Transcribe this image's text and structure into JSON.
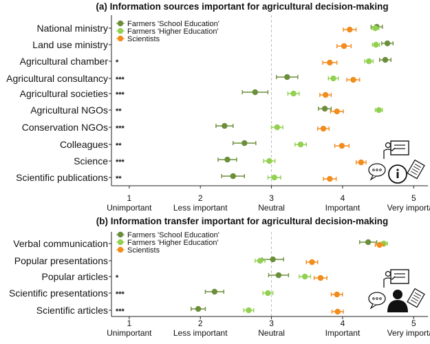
{
  "figure": {
    "panels": [
      {
        "title": "(a) Information sources important for agricultural decision-making",
        "legend": [
          "Farmers 'School Education'",
          "Farmers 'Higher Education'",
          "Scientists"
        ],
        "icon_names": [
          "person-at-board-icon",
          "speech-bubble-icon",
          "info-icon",
          "document-icon"
        ]
      },
      {
        "title": "(b) Information transfer important for agricultural decision-making",
        "legend": [
          "Farmers 'School Education'",
          "Farmers 'Higher Education'",
          "Scientists"
        ],
        "icon_names": [
          "person-at-board-icon",
          "speech-bubble-icon",
          "person-silhouette-icon",
          "document-icon"
        ]
      }
    ]
  },
  "colors": {
    "school": "#6b8e3a",
    "higher": "#92d050",
    "scientists": "#f28c1c",
    "neutral_line": "#bbbbbb",
    "text": "#111111"
  },
  "chart_data": [
    {
      "type": "scatter",
      "title": "(a) Information sources important for agricultural decision-making",
      "x_ticks": [
        1,
        2,
        3,
        4,
        5
      ],
      "x_tick_labels": [
        "Unimportant",
        "Less important",
        "Neutral",
        "Important",
        "Very important"
      ],
      "xlim": [
        0.75,
        5.2
      ],
      "reference_line": 3,
      "categories": [
        "National ministry",
        "Land use ministry",
        "Agricultural chamber",
        "Agricultural consultancy",
        "Agricultural societies",
        "Agricultural NGOs",
        "Conservation NGOs",
        "Colleagues",
        "Science",
        "Scientific publications"
      ],
      "significance": [
        "",
        "",
        "*",
        "***",
        "***",
        "**",
        "***",
        "**",
        "***",
        "**"
      ],
      "series": [
        {
          "name": "Farmers 'School Education'",
          "values": [
            4.48,
            4.63,
            4.6,
            3.22,
            2.77,
            3.75,
            2.34,
            2.62,
            2.38,
            2.46
          ],
          "errors": [
            0.08,
            0.08,
            0.08,
            0.15,
            0.18,
            0.09,
            0.12,
            0.16,
            0.13,
            0.16
          ]
        },
        {
          "name": "Farmers 'Higher Education'",
          "values": [
            4.46,
            4.47,
            4.37,
            3.87,
            3.31,
            4.51,
            3.08,
            3.41,
            2.97,
            3.04
          ],
          "errors": [
            0.05,
            0.05,
            0.06,
            0.07,
            0.08,
            0.05,
            0.08,
            0.08,
            0.08,
            0.09
          ]
        },
        {
          "name": "Scientists",
          "values": [
            4.1,
            4.02,
            3.82,
            4.15,
            3.76,
            3.92,
            3.73,
            3.99,
            4.26,
            3.82
          ],
          "errors": [
            0.09,
            0.1,
            0.1,
            0.09,
            0.08,
            0.09,
            0.08,
            0.1,
            0.07,
            0.09
          ]
        }
      ]
    },
    {
      "type": "scatter",
      "title": "(b) Information transfer important for agricultural decision-making",
      "x_ticks": [
        1,
        2,
        3,
        4,
        5
      ],
      "x_tick_labels": [
        "Unimportant",
        "Less important",
        "Neutral",
        "Important",
        "Very important"
      ],
      "xlim": [
        0.75,
        5.2
      ],
      "reference_line": 3,
      "categories": [
        "Verbal communication",
        "Popular presentations",
        "Popular articles",
        "Scientific presentations",
        "Scientific articles"
      ],
      "significance": [
        "",
        "",
        "*",
        "***",
        "***"
      ],
      "series": [
        {
          "name": "Farmers 'School Education'",
          "values": [
            4.36,
            3.02,
            3.1,
            2.2,
            1.97
          ],
          "errors": [
            0.12,
            0.15,
            0.14,
            0.13,
            0.1
          ]
        },
        {
          "name": "Farmers 'Higher Education'",
          "values": [
            4.58,
            2.84,
            3.47,
            2.95,
            2.68
          ],
          "errors": [
            0.05,
            0.07,
            0.08,
            0.07,
            0.07
          ]
        },
        {
          "name": "Scientists",
          "values": [
            4.52,
            3.57,
            3.69,
            3.92,
            3.93
          ],
          "errors": [
            0.06,
            0.08,
            0.09,
            0.08,
            0.08
          ]
        }
      ]
    }
  ]
}
